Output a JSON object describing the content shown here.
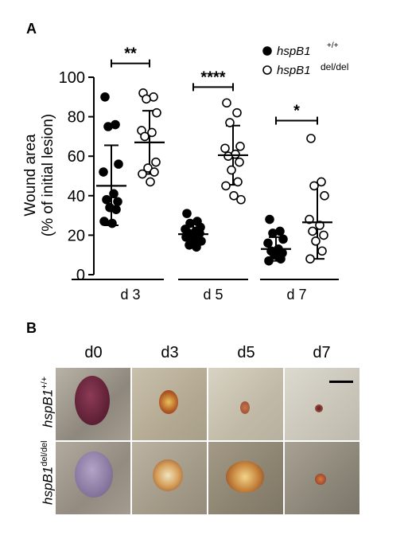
{
  "panel_a_label": "A",
  "panel_b_label": "B",
  "chart_data": {
    "type": "scatter",
    "ylabel_line1": "Wound area",
    "ylabel_line2": "(% of initial lesion)",
    "ylim": [
      0,
      100
    ],
    "yticks": [
      0,
      20,
      40,
      60,
      80,
      100
    ],
    "categories": [
      "d 3",
      "d 5",
      "d 7"
    ],
    "legend_position": "top-right",
    "series": [
      {
        "name": "hspB1",
        "name_superscript": "+/+",
        "marker": "filled-circle",
        "color": "#000000",
        "groups": [
          {
            "category": "d 3",
            "values": [
              90,
              76,
              75,
              56,
              52,
              41,
              38,
              37,
              34,
              33,
              27,
              26
            ],
            "mean": 45,
            "sd_upper": 65.5,
            "sd_lower": 25
          },
          {
            "category": "d 5",
            "values": [
              31,
              27,
              26,
              24,
              23,
              22,
              21,
              21,
              20,
              20,
              19,
              18,
              17,
              15,
              14
            ],
            "mean": 20.5,
            "sd_upper": 25.5,
            "sd_lower": 15.5
          },
          {
            "category": "d 7",
            "values": [
              28,
              22,
              21,
              18,
              16,
              13,
              12,
              11,
              10,
              8,
              7
            ],
            "mean": 13,
            "sd_upper": 19,
            "sd_lower": 7
          }
        ]
      },
      {
        "name": "hspB1",
        "name_superscript": "del/del",
        "marker": "open-circle",
        "color": "#000000",
        "groups": [
          {
            "category": "d 3",
            "values": [
              92,
              90,
              89,
              82,
              73,
              72,
              70,
              57,
              54,
              52,
              51,
              47
            ],
            "mean": 67,
            "sd_upper": 83,
            "sd_lower": 51
          },
          {
            "category": "d 5",
            "values": [
              87,
              82,
              77,
              65,
              64,
              61,
              60,
              57,
              53,
              47,
              45,
              40,
              38
            ],
            "mean": 60.5,
            "sd_upper": 75.5,
            "sd_lower": 45.5
          },
          {
            "category": "d 7",
            "values": [
              69,
              47,
              45,
              40,
              28,
              25,
              22,
              20,
              17,
              12,
              8
            ],
            "mean": 26.5,
            "sd_upper": 45.5,
            "sd_lower": 8
          }
        ]
      }
    ],
    "significance": [
      {
        "category": "d 3",
        "label": "**",
        "y": 107
      },
      {
        "category": "d 5",
        "label": "****",
        "y": 95
      },
      {
        "category": "d 7",
        "label": "*",
        "y": 78
      }
    ]
  },
  "photos": {
    "days": [
      "d0",
      "d3",
      "d5",
      "d7"
    ],
    "rows": [
      {
        "gene": "hspB1",
        "genotype": "+/+"
      },
      {
        "gene": "hspB1",
        "genotype": "del/del"
      }
    ]
  }
}
